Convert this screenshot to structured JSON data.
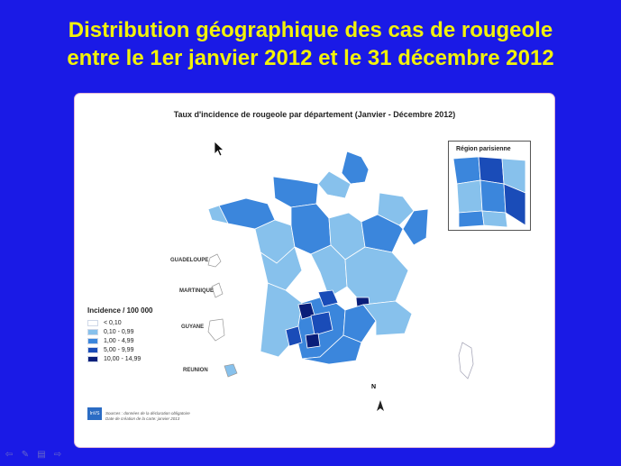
{
  "slide": {
    "title_line1": "Distribution géographique des cas de rougeole",
    "title_line2": "entre le 1er janvier 2012 et le 31 décembre 2012"
  },
  "map": {
    "title": "Taux d'incidence de rougeole par département (Janvier - Décembre 2012)",
    "inset_title": "Région parisienne",
    "north_label": "N",
    "overseas": {
      "guadeloupe": "GUADELOUPE",
      "martinique": "MARTINIQUE",
      "guyane": "GUYANE",
      "reunion": "REUNION"
    },
    "legend": {
      "title": "Incidence / 100 000",
      "items": [
        {
          "label": "< 0,10",
          "color": "#ffffff"
        },
        {
          "label": "0,10 - 0,99",
          "color": "#87c1ec"
        },
        {
          "label": "1,00 - 4,99",
          "color": "#3b86dc"
        },
        {
          "label": "5,00 - 9,99",
          "color": "#1a4cb8"
        },
        {
          "label": "10,00 - 14,99",
          "color": "#0a1f7a"
        }
      ]
    },
    "sources_line1": "Sources : données de la déclaration obligatoire",
    "sources_line2": "Date de création de la carte: janvier 2013",
    "logo_text": "InVS"
  },
  "colors": {
    "background": "#1a1ae6",
    "title": "#f2f20a"
  },
  "nav_icons": [
    "back-arrow-icon",
    "pen-icon",
    "menu-icon",
    "forward-icon"
  ]
}
